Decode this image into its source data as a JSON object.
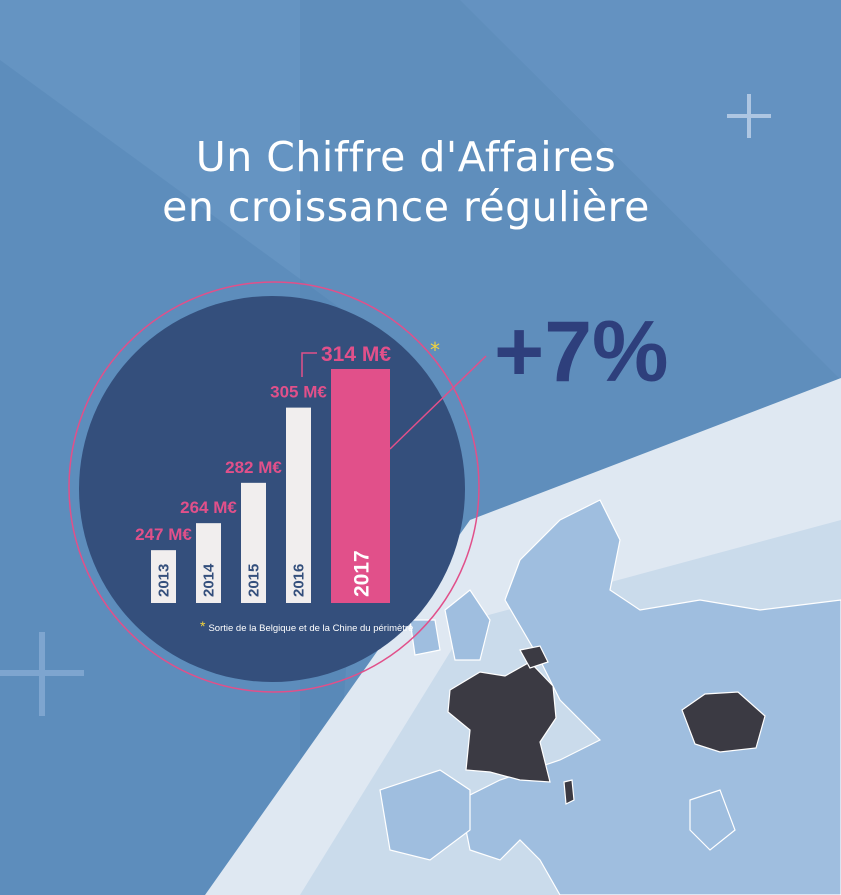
{
  "title_line1": "Un Chiffre d'Affaires",
  "title_line2": "en croissance régulière",
  "growth_label": "+7%",
  "footnote_marker": "*",
  "footnote": "Sortie de la Belgique et de la Chine du périmètre",
  "colors": {
    "background": "#5f8ebc",
    "circle": "#344f7c",
    "bar": "#f1eeee",
    "bar_highlight": "#e1508a",
    "value_label": "#e1508a",
    "accent_text": "#2e3f7c",
    "footnote_marker": "#f3d33b"
  },
  "chart_data": {
    "type": "bar",
    "categories": [
      "2013",
      "2014",
      "2015",
      "2016",
      "2017"
    ],
    "values": [
      247,
      264,
      282,
      305,
      314
    ],
    "value_labels": [
      "247 M€",
      "264 M€",
      "282 M€",
      "305 M€",
      "314 M€"
    ],
    "unit": "M€",
    "highlight_category": "2017",
    "annotated_category": "2017",
    "title": "",
    "xlabel": "",
    "ylabel": "",
    "grid": false,
    "legend": "none"
  }
}
